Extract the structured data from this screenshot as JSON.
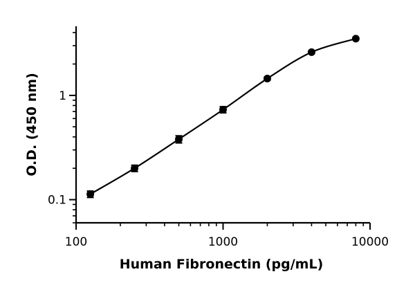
{
  "chart_data": {
    "type": "scatter",
    "xlabel": "Human Fibronectin (pg/mL)",
    "ylabel": "O.D. (450 nm)",
    "x_scale": "log",
    "y_scale": "log",
    "xlim": [
      100,
      10000
    ],
    "ylim": [
      0.06,
      4.6
    ],
    "x_ticks": [
      "100",
      "1000",
      "10000"
    ],
    "y_ticks": [
      "0.1",
      "1"
    ],
    "grid": false,
    "series": [
      {
        "x": [
          125,
          250,
          500,
          1000,
          2000,
          4000,
          8000
        ],
        "y": [
          0.113,
          0.2,
          0.38,
          0.73,
          1.45,
          2.6,
          3.5
        ],
        "error": [
          0.008,
          0.014,
          0.03,
          0.05,
          0.05,
          0.08,
          0.08
        ]
      }
    ],
    "fit_curve": "4PL"
  }
}
